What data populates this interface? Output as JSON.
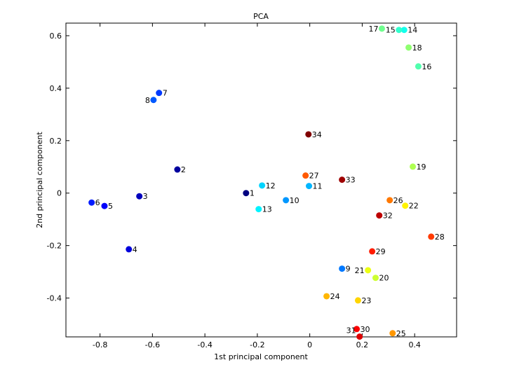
{
  "chart_data": {
    "type": "scatter",
    "title": "PCA",
    "xlabel": "1st principal component",
    "ylabel": "2nd principal component",
    "xlim": [
      -0.93,
      0.56
    ],
    "ylim": [
      -0.548,
      0.648
    ],
    "xticks": [
      -0.8,
      -0.6,
      -0.4,
      -0.2,
      0,
      0.2,
      0.4
    ],
    "xtick_labels": [
      "-0.8",
      "-0.6",
      "-0.4",
      "-0.2",
      "0",
      "0.2",
      "0.4"
    ],
    "yticks": [
      -0.4,
      -0.2,
      0,
      0.2,
      0.4,
      0.6
    ],
    "ytick_labels": [
      "-0.4",
      "-0.2",
      "0",
      "0.2",
      "0.4",
      "0.6"
    ],
    "grid": false,
    "colormap": "jet",
    "points": [
      {
        "label": "1",
        "x": -0.243,
        "y": 0.0
      },
      {
        "label": "2",
        "x": -0.505,
        "y": 0.09
      },
      {
        "label": "3",
        "x": -0.65,
        "y": -0.012
      },
      {
        "label": "4",
        "x": -0.69,
        "y": -0.214
      },
      {
        "label": "5",
        "x": -0.783,
        "y": -0.049
      },
      {
        "label": "6",
        "x": -0.832,
        "y": -0.036
      },
      {
        "label": "7",
        "x": -0.575,
        "y": 0.382
      },
      {
        "label": "8",
        "x": -0.596,
        "y": 0.355
      },
      {
        "label": "9",
        "x": 0.123,
        "y": -0.288
      },
      {
        "label": "10",
        "x": -0.091,
        "y": -0.027
      },
      {
        "label": "11",
        "x": -0.003,
        "y": 0.027
      },
      {
        "label": "12",
        "x": -0.182,
        "y": 0.029
      },
      {
        "label": "13",
        "x": -0.195,
        "y": -0.061
      },
      {
        "label": "14",
        "x": 0.36,
        "y": 0.622
      },
      {
        "label": "15",
        "x": 0.34,
        "y": 0.622
      },
      {
        "label": "16",
        "x": 0.414,
        "y": 0.483
      },
      {
        "label": "17",
        "x": 0.275,
        "y": 0.627
      },
      {
        "label": "18",
        "x": 0.377,
        "y": 0.555
      },
      {
        "label": "19",
        "x": 0.393,
        "y": 0.101
      },
      {
        "label": "20",
        "x": 0.251,
        "y": -0.323
      },
      {
        "label": "21",
        "x": 0.222,
        "y": -0.294
      },
      {
        "label": "22",
        "x": 0.364,
        "y": -0.048
      },
      {
        "label": "23",
        "x": 0.184,
        "y": -0.409
      },
      {
        "label": "24",
        "x": 0.064,
        "y": -0.393
      },
      {
        "label": "25",
        "x": 0.316,
        "y": -0.534
      },
      {
        "label": "26",
        "x": 0.305,
        "y": -0.027
      },
      {
        "label": "27",
        "x": -0.016,
        "y": 0.067
      },
      {
        "label": "28",
        "x": 0.463,
        "y": -0.166
      },
      {
        "label": "29",
        "x": 0.238,
        "y": -0.222
      },
      {
        "label": "30",
        "x": 0.179,
        "y": -0.518
      },
      {
        "label": "31",
        "x": 0.19,
        "y": -0.547
      },
      {
        "label": "32",
        "x": 0.265,
        "y": -0.085
      },
      {
        "label": "33",
        "x": 0.123,
        "y": 0.051
      },
      {
        "label": "34",
        "x": -0.005,
        "y": 0.224
      }
    ]
  }
}
